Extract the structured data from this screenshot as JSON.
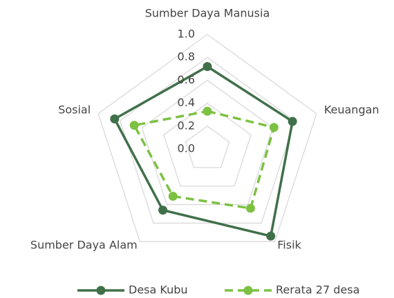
{
  "chart_data": {
    "type": "radar",
    "categories": [
      "Sumber Daya Manusia",
      "Keuangan",
      "Fisik",
      "Sumber Daya Alam",
      "Sosial"
    ],
    "rlim": [
      0,
      1.0
    ],
    "rticks": [
      {
        "value": 0,
        "label": "0.0"
      },
      0.2,
      0.4,
      0.6,
      0.8,
      {
        "value": 1,
        "label": "1.0"
      }
    ],
    "grid": true,
    "legend": "bottom",
    "series": [
      {
        "name": "Desa Kubu",
        "color": "#40704a",
        "dashed": false,
        "values": [
          0.72,
          0.78,
          0.94,
          0.66,
          0.85
        ]
      },
      {
        "name": "Rerata 27 desa",
        "color": "#7cc142",
        "dashed": true,
        "values": [
          0.33,
          0.61,
          0.64,
          0.51,
          0.67
        ]
      }
    ]
  }
}
